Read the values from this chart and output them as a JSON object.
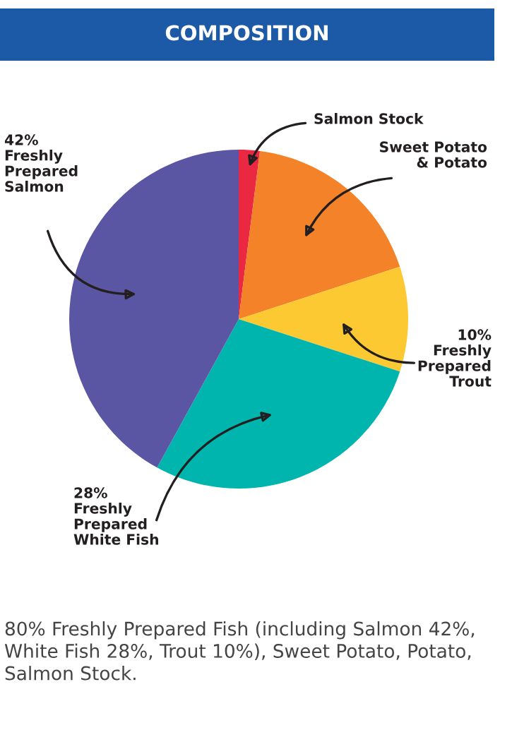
{
  "chart_data": {
    "type": "pie",
    "title": "COMPOSITION",
    "categories": [
      "Salmon Stock",
      "Sweet Potato\n& Potato",
      "Freshly\nPrepared\nTrout",
      "Freshly\nPrepared\nWhite Fish",
      "Freshly\nPrepared\nSalmon"
    ],
    "values": [
      2,
      18,
      10,
      28,
      42
    ],
    "value_labels": [
      null,
      null,
      "10%",
      "28%",
      "42%"
    ],
    "colors": [
      "#ea2842",
      "#f48228",
      "#fdc933",
      "#00b5ad",
      "#5a56a3"
    ],
    "annotations": [
      "80% Freshly Prepared Fish (including Salmon 42%, White Fish 28%, Trout 10%), Sweet Potato, Potato, Salmon Stock."
    ],
    "legend": false
  }
}
